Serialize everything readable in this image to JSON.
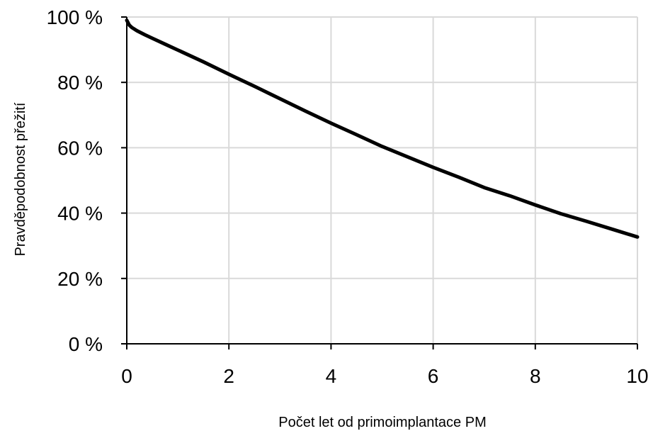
{
  "chart_data": {
    "type": "line",
    "title": "",
    "xlabel": "Počet let od primoimplantace PM",
    "ylabel": "Pravděpodobnost přežití",
    "xlim": [
      0,
      10
    ],
    "ylim": [
      0,
      100
    ],
    "x_ticks": [
      0,
      2,
      4,
      6,
      8,
      10
    ],
    "x_tick_labels": [
      "0",
      "2",
      "4",
      "6",
      "8",
      "10"
    ],
    "y_ticks": [
      0,
      20,
      40,
      60,
      80,
      100
    ],
    "y_tick_labels": [
      "0 %",
      "20 %",
      "40 %",
      "60 %",
      "80 %",
      "100 %"
    ],
    "grid": true,
    "legend": "none",
    "series": [
      {
        "color": "#000000",
        "x": [
          0,
          0.05,
          0.1,
          0.2,
          0.35,
          0.5,
          0.75,
          1,
          1.5,
          2,
          2.5,
          3,
          3.5,
          4,
          4.5,
          5,
          5.5,
          6,
          6.5,
          7,
          7.5,
          8,
          8.5,
          9,
          9.5,
          10
        ],
        "y": [
          99,
          97.5,
          96.8,
          95.8,
          94.6,
          93.5,
          91.7,
          89.9,
          86.3,
          82.5,
          78.8,
          75,
          71.2,
          67.5,
          64,
          60.4,
          57.2,
          54,
          51,
          47.8,
          45.3,
          42.5,
          39.8,
          37.5,
          35.1,
          32.7
        ]
      }
    ]
  }
}
